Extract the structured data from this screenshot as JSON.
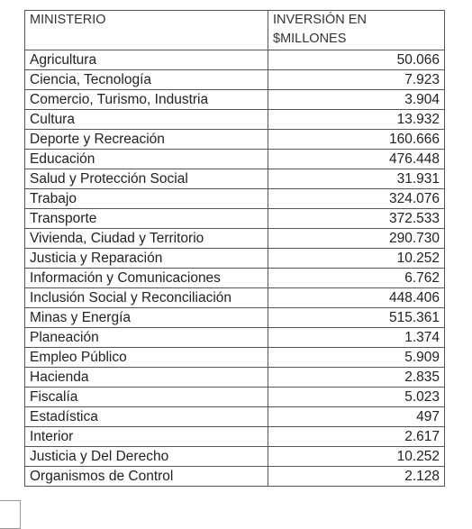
{
  "table": {
    "header": [
      "MINISTERIO",
      "INVERSIÓN EN $MILLONES"
    ],
    "rows": [
      [
        "Agricultura",
        "50.066"
      ],
      [
        "Ciencia, Tecnología",
        "7.923"
      ],
      [
        "Comercio, Turismo, Industria",
        "3.904"
      ],
      [
        "Cultura",
        "13.932"
      ],
      [
        "Deporte y Recreación",
        "160.666"
      ],
      [
        "Educación",
        "476.448"
      ],
      [
        "Salud y Protección Social",
        "31.931"
      ],
      [
        "Trabajo",
        "324.076"
      ],
      [
        "Transporte",
        "372.533"
      ],
      [
        "Vivienda, Ciudad y Territorio",
        "290.730"
      ],
      [
        "Justicia y Reparación",
        "10.252"
      ],
      [
        "Información y Comunicaciones",
        "6.762"
      ],
      [
        "Inclusión Social y Reconciliación",
        "448.406"
      ],
      [
        "Minas y Energía",
        "515.361"
      ],
      [
        "Planeación",
        "1.374"
      ],
      [
        "Empleo Público",
        "5.909"
      ],
      [
        "Hacienda",
        "2.835"
      ],
      [
        "Fiscalía",
        "5.023"
      ],
      [
        "Estadística",
        "497"
      ],
      [
        "Interior",
        "2.617"
      ],
      [
        "Justicia y Del Derecho",
        "10.252"
      ],
      [
        "Organismos de Control",
        "2.128"
      ]
    ]
  }
}
